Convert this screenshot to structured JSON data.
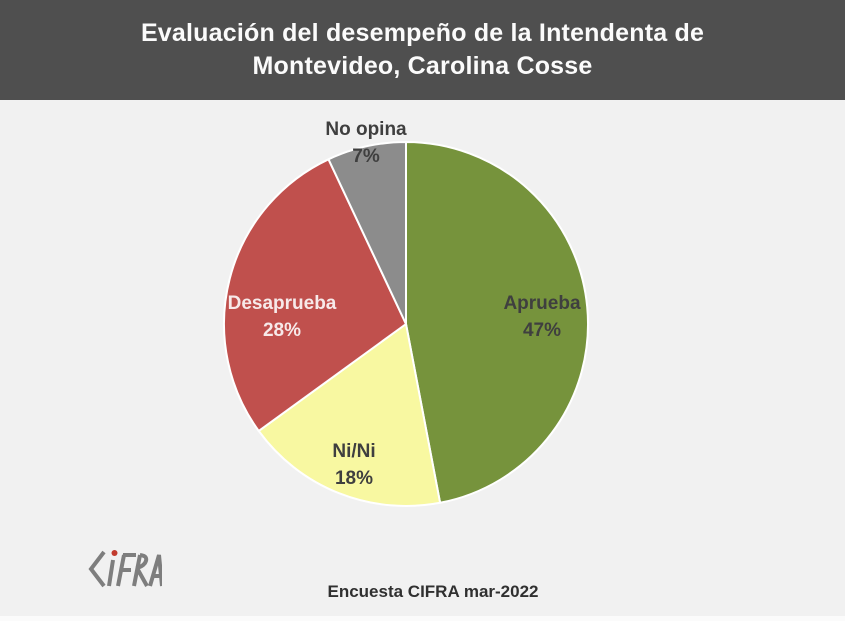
{
  "title": {
    "line1": "Evaluación del desempeño de la Intendenta de",
    "line2": "Montevideo, Carolina Cosse"
  },
  "chart_data": {
    "type": "pie",
    "title": "Evaluación del desempeño de la Intendenta de Montevideo, Carolina Cosse",
    "direction": "clockwise",
    "start_angle_deg": 0,
    "categories": [
      "Aprueba",
      "Ni/Ni",
      "Desaprueba",
      "No opina"
    ],
    "values": [
      47,
      18,
      28,
      7
    ],
    "slices": [
      {
        "label": "Aprueba",
        "value": 47,
        "pct_label": "47%",
        "color": "#76933c",
        "text_color": "#3f3f3f"
      },
      {
        "label": "Ni/Ni",
        "value": 18,
        "pct_label": "18%",
        "color": "#f8f8a1",
        "text_color": "#3f3f3f"
      },
      {
        "label": "Desaprueba",
        "value": 28,
        "pct_label": "28%",
        "color": "#c0504d",
        "text_color": "#f7e9e9"
      },
      {
        "label": "No opina",
        "value": 7,
        "pct_label": "7%",
        "color": "#8c8c8c",
        "text_color": "#3f3f3f"
      }
    ],
    "legend": "none",
    "labels_on_slices": true
  },
  "footer": {
    "caption": "Encuesta CIFRA mar-2022",
    "logo_text": "CIFRA"
  },
  "colors": {
    "header_bg": "#4f4f4f",
    "body_bg": "#f1f1f1",
    "title_text": "#fbfbfb",
    "slice_separator": "#ffffff",
    "logo_gray": "#7e7e7e",
    "logo_dot_red": "#c23b2e"
  }
}
